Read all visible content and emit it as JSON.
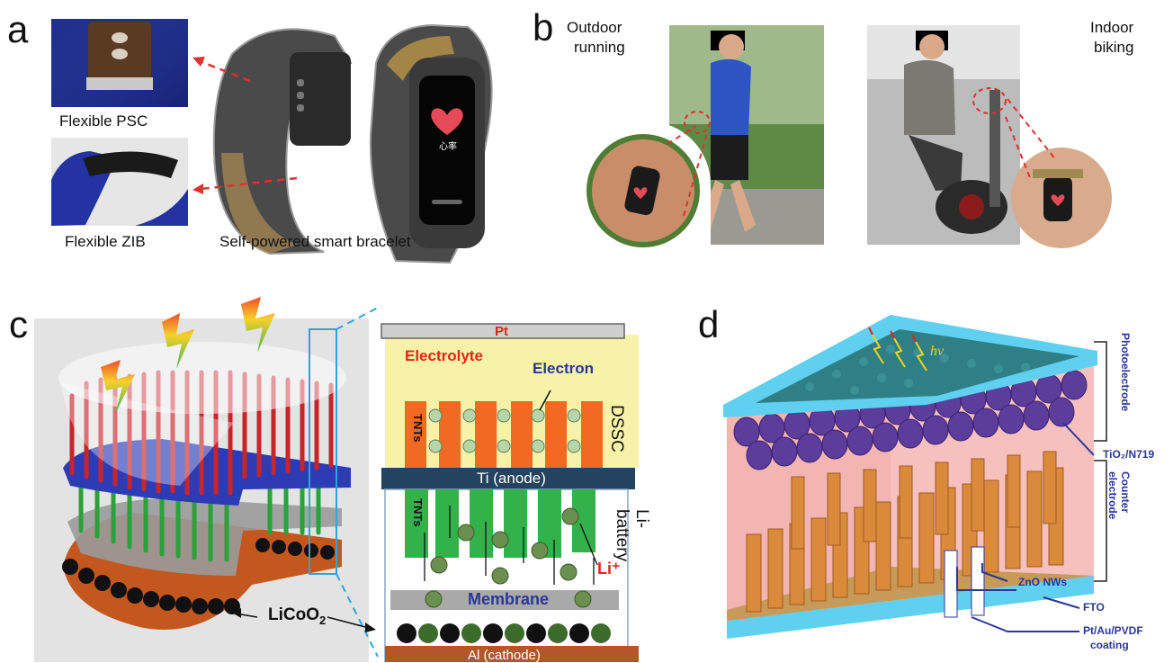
{
  "panels": {
    "a": {
      "label": "a",
      "psc_caption": "Flexible PSC",
      "zib_caption": "Flexible ZIB",
      "bracelet_caption": "Self-powered smart bracelet",
      "watch_text": "心率"
    },
    "b": {
      "label": "b",
      "outdoor_line1": "Outdoor",
      "outdoor_line2": "running",
      "indoor_line1": "Indoor",
      "indoor_line2": "biking"
    },
    "c": {
      "label": "c",
      "licoo2": "LiCoO",
      "licoo2_sub": "2",
      "pt": "Pt",
      "electrolyte": "Electrolyte",
      "electron": "Electron",
      "dssc": "DSSC",
      "tnts_top": "TNTs",
      "ti_anode": "Ti (anode)",
      "tnts_bottom": "TNTs",
      "li_ion": "Li⁺",
      "li_battery": "Li-battery",
      "membrane": "Membrane",
      "al_cathode": "Al (cathode)"
    },
    "d": {
      "label": "d",
      "hv": "hv",
      "photoelectrode": "Photoelectrode",
      "tio2": "TiO₂/N719",
      "counter_electrode": "Counter electrode",
      "zno": "ZnO NWs",
      "fto": "FTO",
      "coating_line1": "Pt/Au/PVDF",
      "coating_line2": "coating"
    }
  },
  "colors": {
    "red_tubes": "#c8242b",
    "green_tubes": "#27a33b",
    "blue_plate": "#2d3bb5",
    "orange_layer": "#d2581c",
    "dssc_bg": "#f7f2a8",
    "orange_tnts": "#f26a21",
    "green_tnts": "#33b14a",
    "ti_bar": "#24435f",
    "membrane": "#a9a9a9",
    "al_bar": "#b3562a",
    "cyan": "#5fd0ef",
    "pink": "#f2b5b2",
    "nw_orange": "#d98b3b",
    "teal_disc": "#2f7f86",
    "purple_disc": "#5d3d9c",
    "label_blue": "#2a3796",
    "label_red": "#e2261c"
  }
}
